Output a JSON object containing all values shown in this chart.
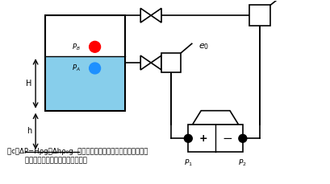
{
  "bg_color": "#ffffff",
  "line_color": "#000000",
  "liquid_color": "#87CEEB",
  "caption_line1": "（c）ΔP=Hρg－Δhρ₀g  （变送器低于液位零点，且导压管内有",
  "caption_line2": "        隔离液或冷凝液，需零点负迁移）"
}
